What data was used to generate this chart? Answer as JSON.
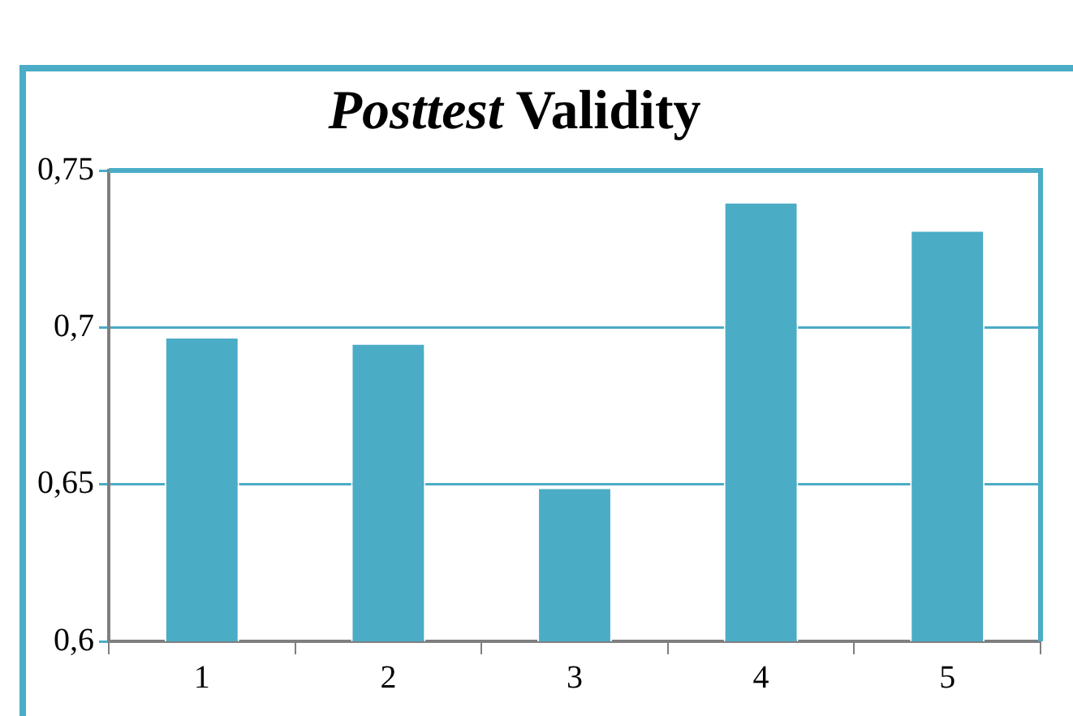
{
  "chart_data": {
    "type": "bar",
    "title": "Posttest Validity",
    "categories": [
      "1",
      "2",
      "3",
      "4",
      "5"
    ],
    "values": [
      0.697,
      0.695,
      0.649,
      0.74,
      0.731
    ],
    "color": "#4bacc6",
    "ylim": [
      0.6,
      0.75
    ],
    "yticks": [
      {
        "value": 0.6,
        "label": "0,6"
      },
      {
        "value": 0.65,
        "label": "0,65"
      },
      {
        "value": 0.7,
        "label": "0,7"
      },
      {
        "value": 0.75,
        "label": "0,75"
      }
    ],
    "grid": "y",
    "legend": false
  }
}
